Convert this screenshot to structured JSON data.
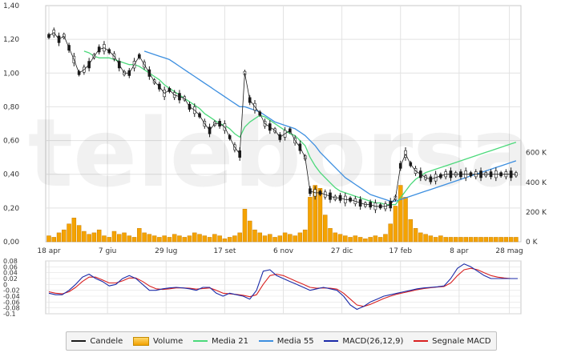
{
  "watermark": "teleborsa",
  "colors": {
    "candle": "#1a1a1a",
    "volume_fill": "#f5a300",
    "media21": "#4cd97b",
    "media55": "#3d8fe0",
    "macd": "#1a2aa8",
    "signal": "#d82020",
    "grid": "#e2e2e2"
  },
  "legend": [
    {
      "label": "Candele",
      "icon": "black-line"
    },
    {
      "label": "Volume",
      "icon": "orange-box"
    },
    {
      "label": "Media 21",
      "icon": "green-line"
    },
    {
      "label": "Media 55",
      "icon": "blue-line"
    },
    {
      "label": "MACD(26,12,9)",
      "icon": "navy-line"
    },
    {
      "label": "Segnale MACD",
      "icon": "red-line"
    }
  ],
  "chart_data": [
    {
      "type": "line",
      "panel": "price",
      "x_tick_labels": [
        "18 apr",
        "7 giu",
        "29 lug",
        "17 set",
        "6 nov",
        "27 dic",
        "17 feb",
        "8 apr",
        "28 mag"
      ],
      "y_tick_labels": [
        "0,00",
        "0,20",
        "0,40",
        "0,60",
        "0,80",
        "1,00",
        "1,20",
        "1,40"
      ],
      "ylim": [
        0,
        1.4
      ],
      "volume_axis_labels": [
        "0 K",
        "200 K",
        "400 K",
        "600 K"
      ],
      "volume_lim": [
        0,
        700
      ],
      "grid": true,
      "x": [
        0,
        3,
        6,
        9,
        12,
        15,
        18,
        21,
        24,
        27,
        30,
        33,
        36,
        39,
        42,
        45,
        48,
        51,
        54,
        57,
        60,
        63,
        66,
        69,
        72,
        75,
        78,
        81,
        84,
        87,
        90,
        93,
        96,
        99,
        102,
        105,
        108,
        111,
        114,
        117,
        120,
        123,
        126,
        129,
        132,
        135,
        138,
        141,
        144,
        147,
        150,
        153,
        156,
        159,
        162,
        165,
        168,
        171,
        174,
        177,
        180,
        183,
        186,
        189,
        192,
        195,
        198,
        201,
        204,
        207,
        210,
        213,
        216,
        219,
        222,
        225,
        228,
        231,
        234,
        237,
        240,
        243,
        246,
        249,
        252,
        255,
        258,
        261,
        264,
        267,
        270,
        273,
        276,
        279
      ],
      "series": [
        {
          "name": "Candele",
          "values": [
            1.22,
            1.24,
            1.2,
            1.22,
            1.15,
            1.08,
            1.0,
            1.02,
            1.05,
            1.1,
            1.14,
            1.15,
            1.13,
            1.1,
            1.05,
            1.0,
            1.0,
            1.05,
            1.1,
            1.05,
            1.0,
            0.95,
            0.92,
            0.88,
            0.9,
            0.87,
            0.86,
            0.85,
            0.8,
            0.78,
            0.75,
            0.7,
            0.66,
            0.7,
            0.7,
            0.68,
            0.62,
            0.56,
            0.52,
            1.0,
            0.84,
            0.8,
            0.76,
            0.7,
            0.68,
            0.66,
            0.62,
            0.64,
            0.66,
            0.6,
            0.56,
            0.5,
            0.3,
            0.29,
            0.29,
            0.28,
            0.27,
            0.26,
            0.26,
            0.25,
            0.25,
            0.24,
            0.23,
            0.22,
            0.22,
            0.21,
            0.21,
            0.21,
            0.22,
            0.26,
            0.45,
            0.52,
            0.46,
            0.42,
            0.4,
            0.38,
            0.37,
            0.38,
            0.39,
            0.4,
            0.4,
            0.4,
            0.4,
            0.4,
            0.4,
            0.4,
            0.4,
            0.4,
            0.4,
            0.4,
            0.4,
            0.4,
            0.4,
            0.4
          ]
        },
        {
          "name": "Media 21",
          "values": [
            null,
            null,
            null,
            null,
            null,
            null,
            null,
            1.13,
            1.12,
            1.1,
            1.09,
            1.09,
            1.09,
            1.08,
            1.07,
            1.06,
            1.05,
            1.05,
            1.04,
            1.02,
            1.0,
            0.98,
            0.96,
            0.93,
            0.91,
            0.89,
            0.87,
            0.85,
            0.83,
            0.81,
            0.79,
            0.76,
            0.74,
            0.72,
            0.7,
            0.69,
            0.67,
            0.64,
            0.62,
            0.68,
            0.71,
            0.73,
            0.75,
            0.74,
            0.72,
            0.7,
            0.68,
            0.66,
            0.64,
            0.63,
            0.6,
            0.57,
            0.5,
            0.45,
            0.41,
            0.38,
            0.35,
            0.32,
            0.3,
            0.29,
            0.28,
            0.27,
            0.26,
            0.25,
            0.24,
            0.23,
            0.23,
            0.22,
            0.22,
            0.22,
            0.26,
            0.3,
            0.34,
            0.37,
            0.39,
            0.41,
            0.42,
            0.43,
            0.44,
            0.45,
            0.46,
            0.47,
            0.48,
            0.49,
            0.5,
            0.51,
            0.52,
            0.53,
            0.54,
            0.55,
            0.56,
            0.57,
            0.58,
            0.59
          ]
        },
        {
          "name": "Media 55",
          "values": [
            null,
            null,
            null,
            null,
            null,
            null,
            null,
            null,
            null,
            null,
            null,
            null,
            null,
            null,
            null,
            null,
            null,
            null,
            null,
            1.13,
            1.12,
            1.11,
            1.1,
            1.09,
            1.08,
            1.06,
            1.04,
            1.02,
            1.0,
            0.98,
            0.96,
            0.94,
            0.92,
            0.9,
            0.88,
            0.86,
            0.84,
            0.82,
            0.8,
            0.8,
            0.79,
            0.78,
            0.77,
            0.75,
            0.73,
            0.71,
            0.7,
            0.69,
            0.68,
            0.67,
            0.65,
            0.63,
            0.6,
            0.57,
            0.53,
            0.5,
            0.47,
            0.44,
            0.41,
            0.38,
            0.36,
            0.34,
            0.32,
            0.3,
            0.28,
            0.27,
            0.26,
            0.25,
            0.24,
            0.24,
            0.25,
            0.26,
            0.27,
            0.28,
            0.29,
            0.3,
            0.31,
            0.32,
            0.33,
            0.34,
            0.35,
            0.36,
            0.37,
            0.38,
            0.39,
            0.4,
            0.41,
            0.42,
            0.43,
            0.44,
            0.45,
            0.46,
            0.47,
            0.48
          ]
        },
        {
          "name": "Volume",
          "values": [
            40,
            30,
            60,
            80,
            120,
            160,
            110,
            70,
            50,
            60,
            80,
            40,
            30,
            70,
            50,
            60,
            40,
            30,
            90,
            60,
            50,
            40,
            30,
            40,
            30,
            50,
            40,
            30,
            40,
            60,
            50,
            40,
            30,
            50,
            40,
            20,
            30,
            40,
            60,
            220,
            140,
            80,
            60,
            40,
            50,
            30,
            40,
            60,
            50,
            40,
            60,
            80,
            300,
            380,
            360,
            180,
            90,
            60,
            50,
            40,
            30,
            40,
            30,
            20,
            30,
            40,
            30,
            50,
            120,
            240,
            380,
            300,
            150,
            90,
            60,
            50,
            40,
            30,
            40,
            30,
            30,
            30,
            30,
            30,
            30,
            30,
            30,
            30,
            30,
            30,
            30,
            30,
            30,
            30
          ]
        }
      ]
    },
    {
      "type": "line",
      "panel": "macd",
      "y_tick_labels": [
        "0.08",
        "0.06",
        "0.04",
        "0.02",
        "0",
        "-0.02",
        "-0.04",
        "-0.06",
        "-0.08",
        "-0.1"
      ],
      "ylim": [
        -0.1,
        0.08
      ],
      "grid": true,
      "x": [
        0,
        4,
        8,
        12,
        16,
        20,
        24,
        28,
        32,
        36,
        40,
        44,
        48,
        52,
        56,
        60,
        64,
        68,
        72,
        76,
        80,
        84,
        88,
        92,
        96,
        100,
        104,
        108,
        112,
        116,
        120,
        124,
        128,
        132,
        136,
        140,
        144,
        148,
        152,
        156,
        160,
        164,
        168,
        172,
        176,
        180,
        184,
        188,
        192,
        196,
        200,
        204,
        208,
        212,
        216,
        220,
        224,
        228,
        232,
        236,
        240,
        244,
        248,
        252,
        256,
        260,
        264,
        268,
        272,
        276,
        280
      ],
      "series": [
        {
          "name": "MACD(26,12,9)",
          "values": [
            -0.03,
            -0.035,
            -0.035,
            -0.02,
            0.0,
            0.025,
            0.035,
            0.02,
            0.01,
            -0.005,
            0.0,
            0.02,
            0.03,
            0.02,
            0.0,
            -0.02,
            -0.02,
            -0.015,
            -0.012,
            -0.01,
            -0.012,
            -0.015,
            -0.02,
            -0.01,
            -0.01,
            -0.03,
            -0.04,
            -0.03,
            -0.035,
            -0.04,
            -0.05,
            -0.02,
            0.045,
            0.05,
            0.03,
            0.02,
            0.01,
            0.0,
            -0.01,
            -0.02,
            -0.015,
            -0.01,
            -0.015,
            -0.02,
            -0.04,
            -0.07,
            -0.085,
            -0.075,
            -0.06,
            -0.05,
            -0.04,
            -0.035,
            -0.03,
            -0.025,
            -0.02,
            -0.015,
            -0.012,
            -0.01,
            -0.008,
            -0.005,
            0.02,
            0.055,
            0.07,
            0.06,
            0.045,
            0.03,
            0.02,
            0.02,
            0.02,
            0.02,
            0.02
          ]
        },
        {
          "name": "Segnale MACD",
          "values": [
            -0.025,
            -0.03,
            -0.032,
            -0.025,
            -0.01,
            0.01,
            0.025,
            0.025,
            0.015,
            0.005,
            0.005,
            0.012,
            0.022,
            0.022,
            0.01,
            -0.005,
            -0.015,
            -0.017,
            -0.015,
            -0.012,
            -0.012,
            -0.013,
            -0.016,
            -0.014,
            -0.012,
            -0.02,
            -0.03,
            -0.032,
            -0.034,
            -0.037,
            -0.042,
            -0.035,
            0.0,
            0.03,
            0.035,
            0.03,
            0.02,
            0.01,
            0.0,
            -0.01,
            -0.013,
            -0.012,
            -0.013,
            -0.016,
            -0.03,
            -0.05,
            -0.07,
            -0.075,
            -0.068,
            -0.058,
            -0.048,
            -0.04,
            -0.033,
            -0.028,
            -0.023,
            -0.018,
            -0.014,
            -0.011,
            -0.009,
            -0.007,
            0.005,
            0.03,
            0.05,
            0.055,
            0.05,
            0.04,
            0.03,
            0.025,
            0.022,
            0.02,
            0.02
          ]
        }
      ]
    }
  ]
}
